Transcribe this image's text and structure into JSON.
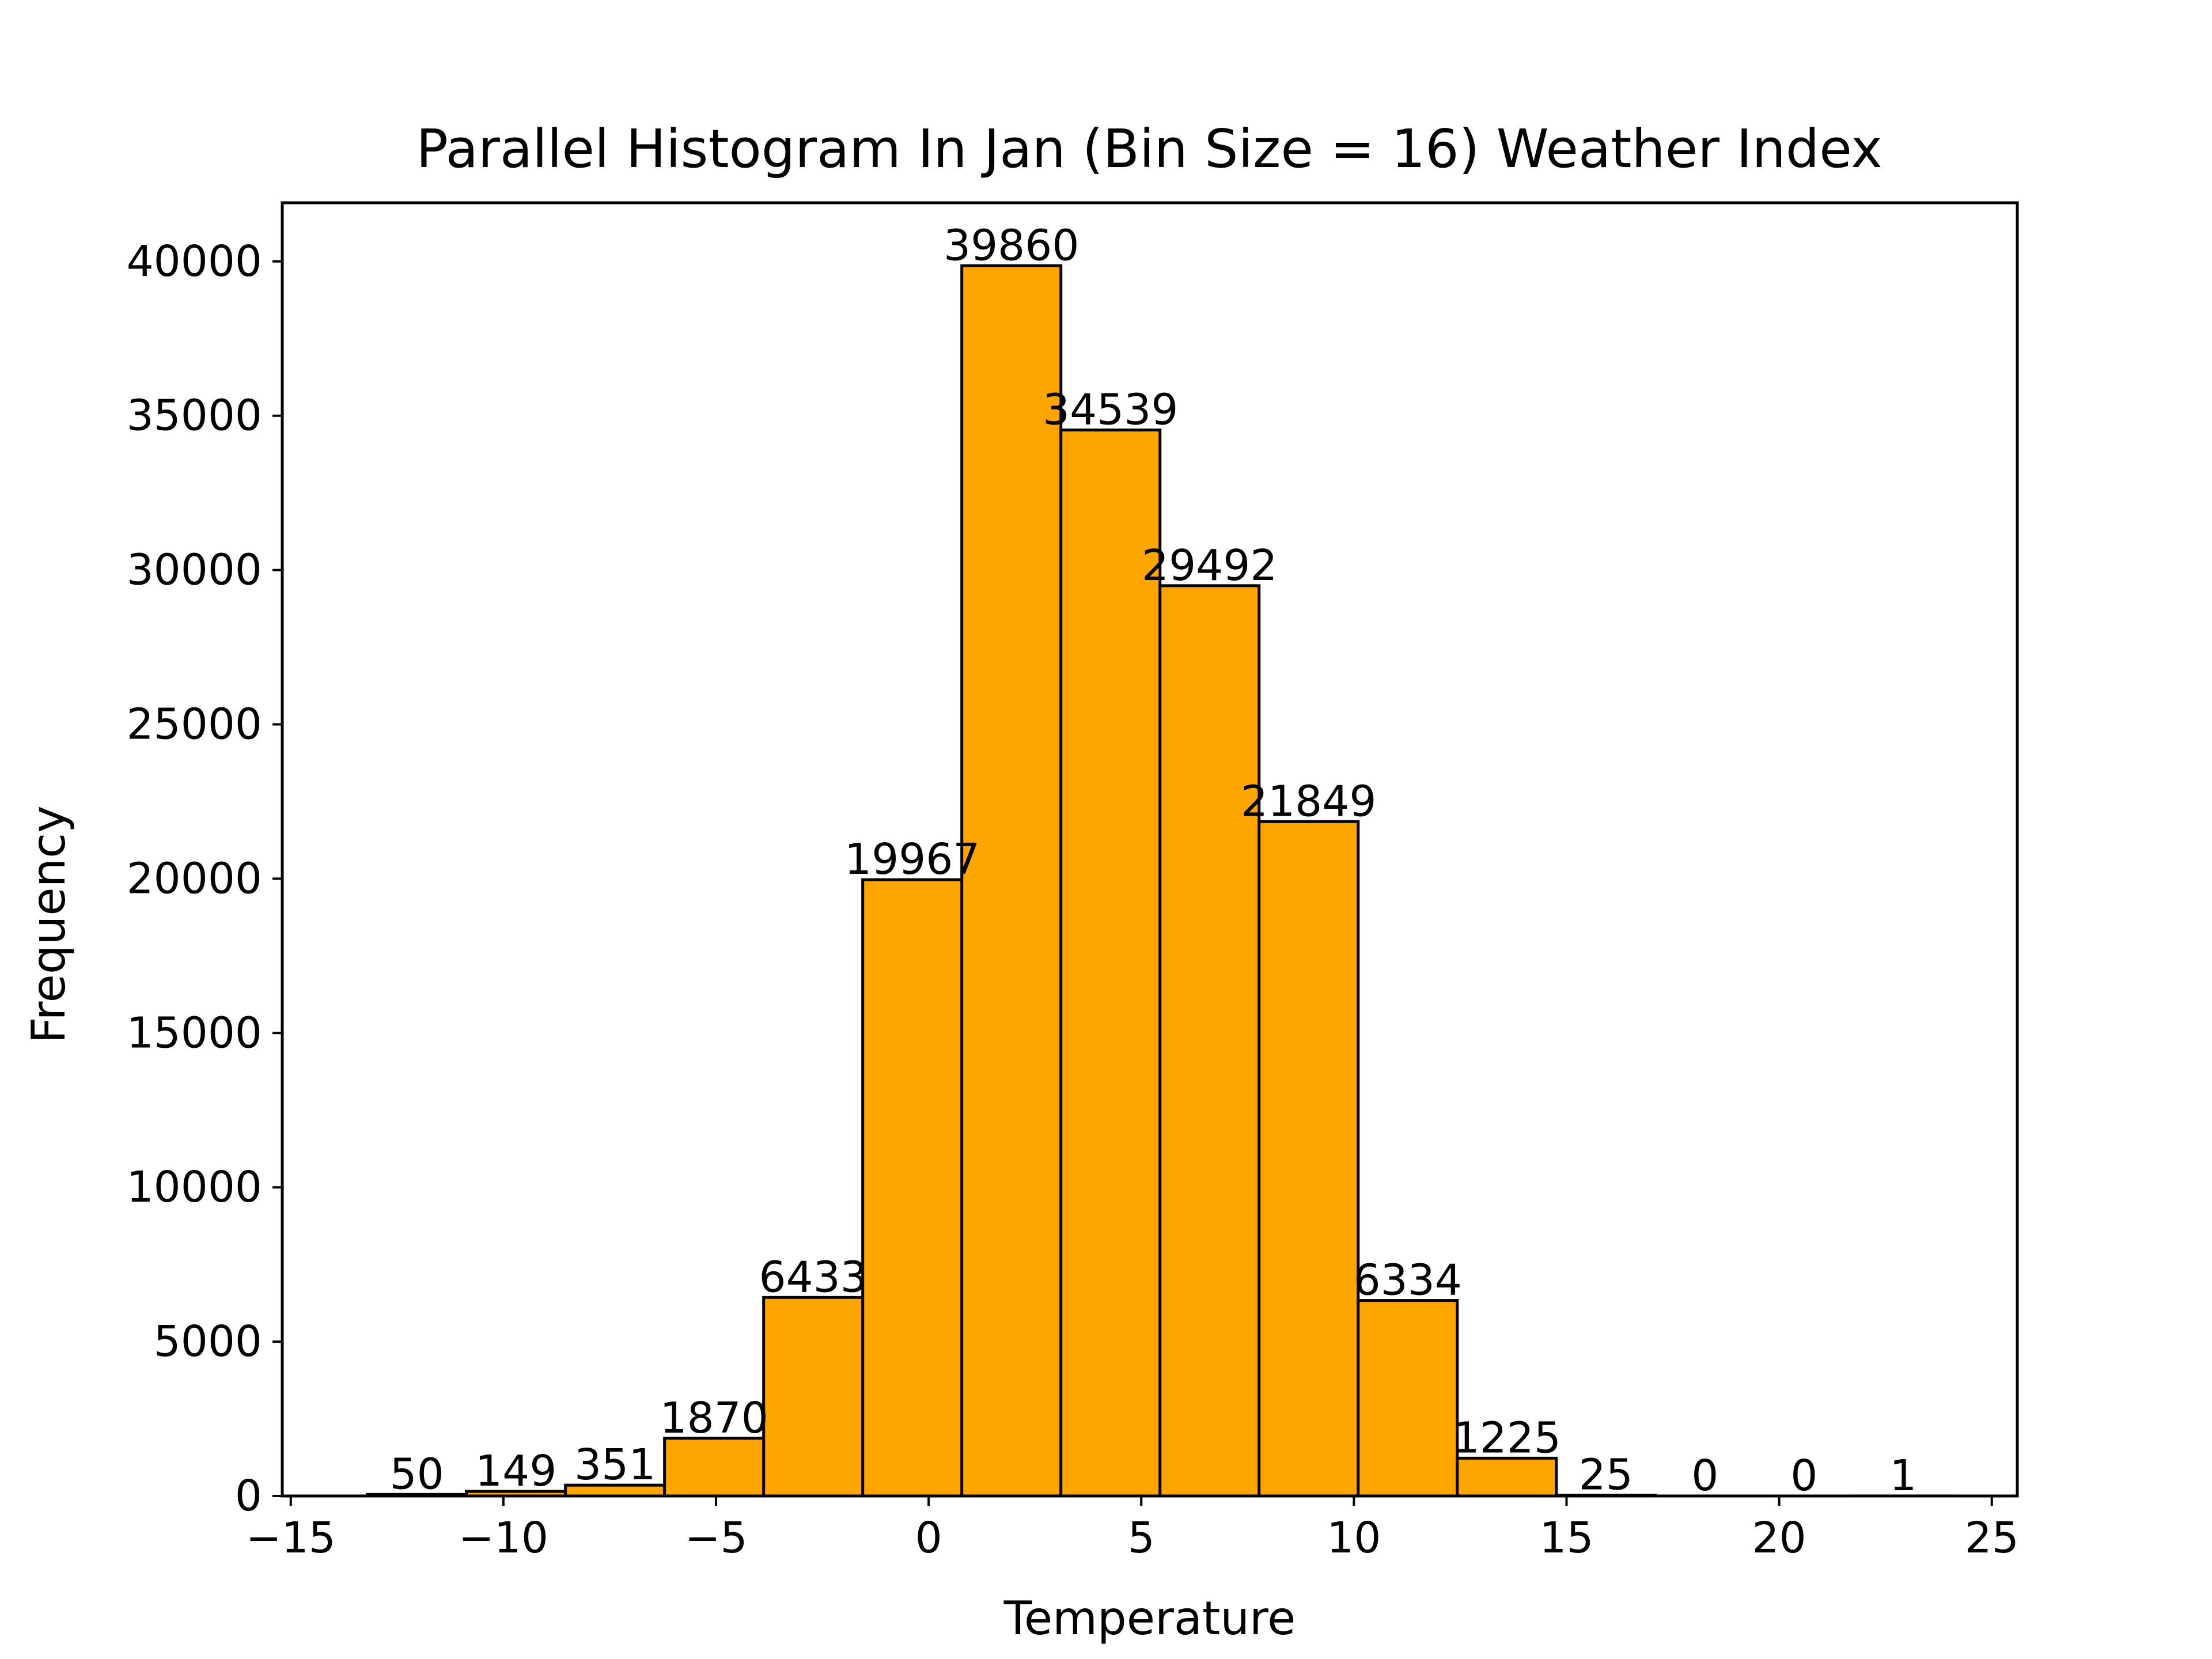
{
  "chart_data": {
    "type": "bar",
    "title": "Parallel Histogram In Jan (Bin Size = 16) Weather Index",
    "xlabel": "Temperature",
    "ylabel": "Frequency",
    "bins": {
      "start": -13.2,
      "width": 2.33,
      "edges": [
        -13.2,
        -10.87,
        -8.54,
        -6.21,
        -3.88,
        -1.55,
        0.78,
        3.11,
        5.44,
        7.77,
        10.1,
        12.43,
        14.76,
        17.09,
        19.42,
        21.75,
        24.08
      ]
    },
    "values": [
      50,
      149,
      351,
      1870,
      6433,
      19967,
      39860,
      34539,
      29492,
      21849,
      6334,
      1225,
      25,
      0,
      0,
      1
    ],
    "xlim": [
      -15.2,
      25.6
    ],
    "ylim": [
      0,
      41900
    ],
    "x_ticks": [
      -15,
      -10,
      -5,
      0,
      5,
      10,
      15,
      20,
      25
    ],
    "x_tick_labels": [
      "−15",
      "−10",
      "−5",
      "0",
      "5",
      "10",
      "15",
      "20",
      "25"
    ],
    "y_ticks": [
      0,
      5000,
      10000,
      15000,
      20000,
      25000,
      30000,
      35000,
      40000
    ],
    "y_tick_labels": [
      "0",
      "5000",
      "10000",
      "15000",
      "20000",
      "25000",
      "30000",
      "35000",
      "40000"
    ],
    "bar_color": "#FFA500",
    "edge_color": "#000000",
    "grid": false
  }
}
